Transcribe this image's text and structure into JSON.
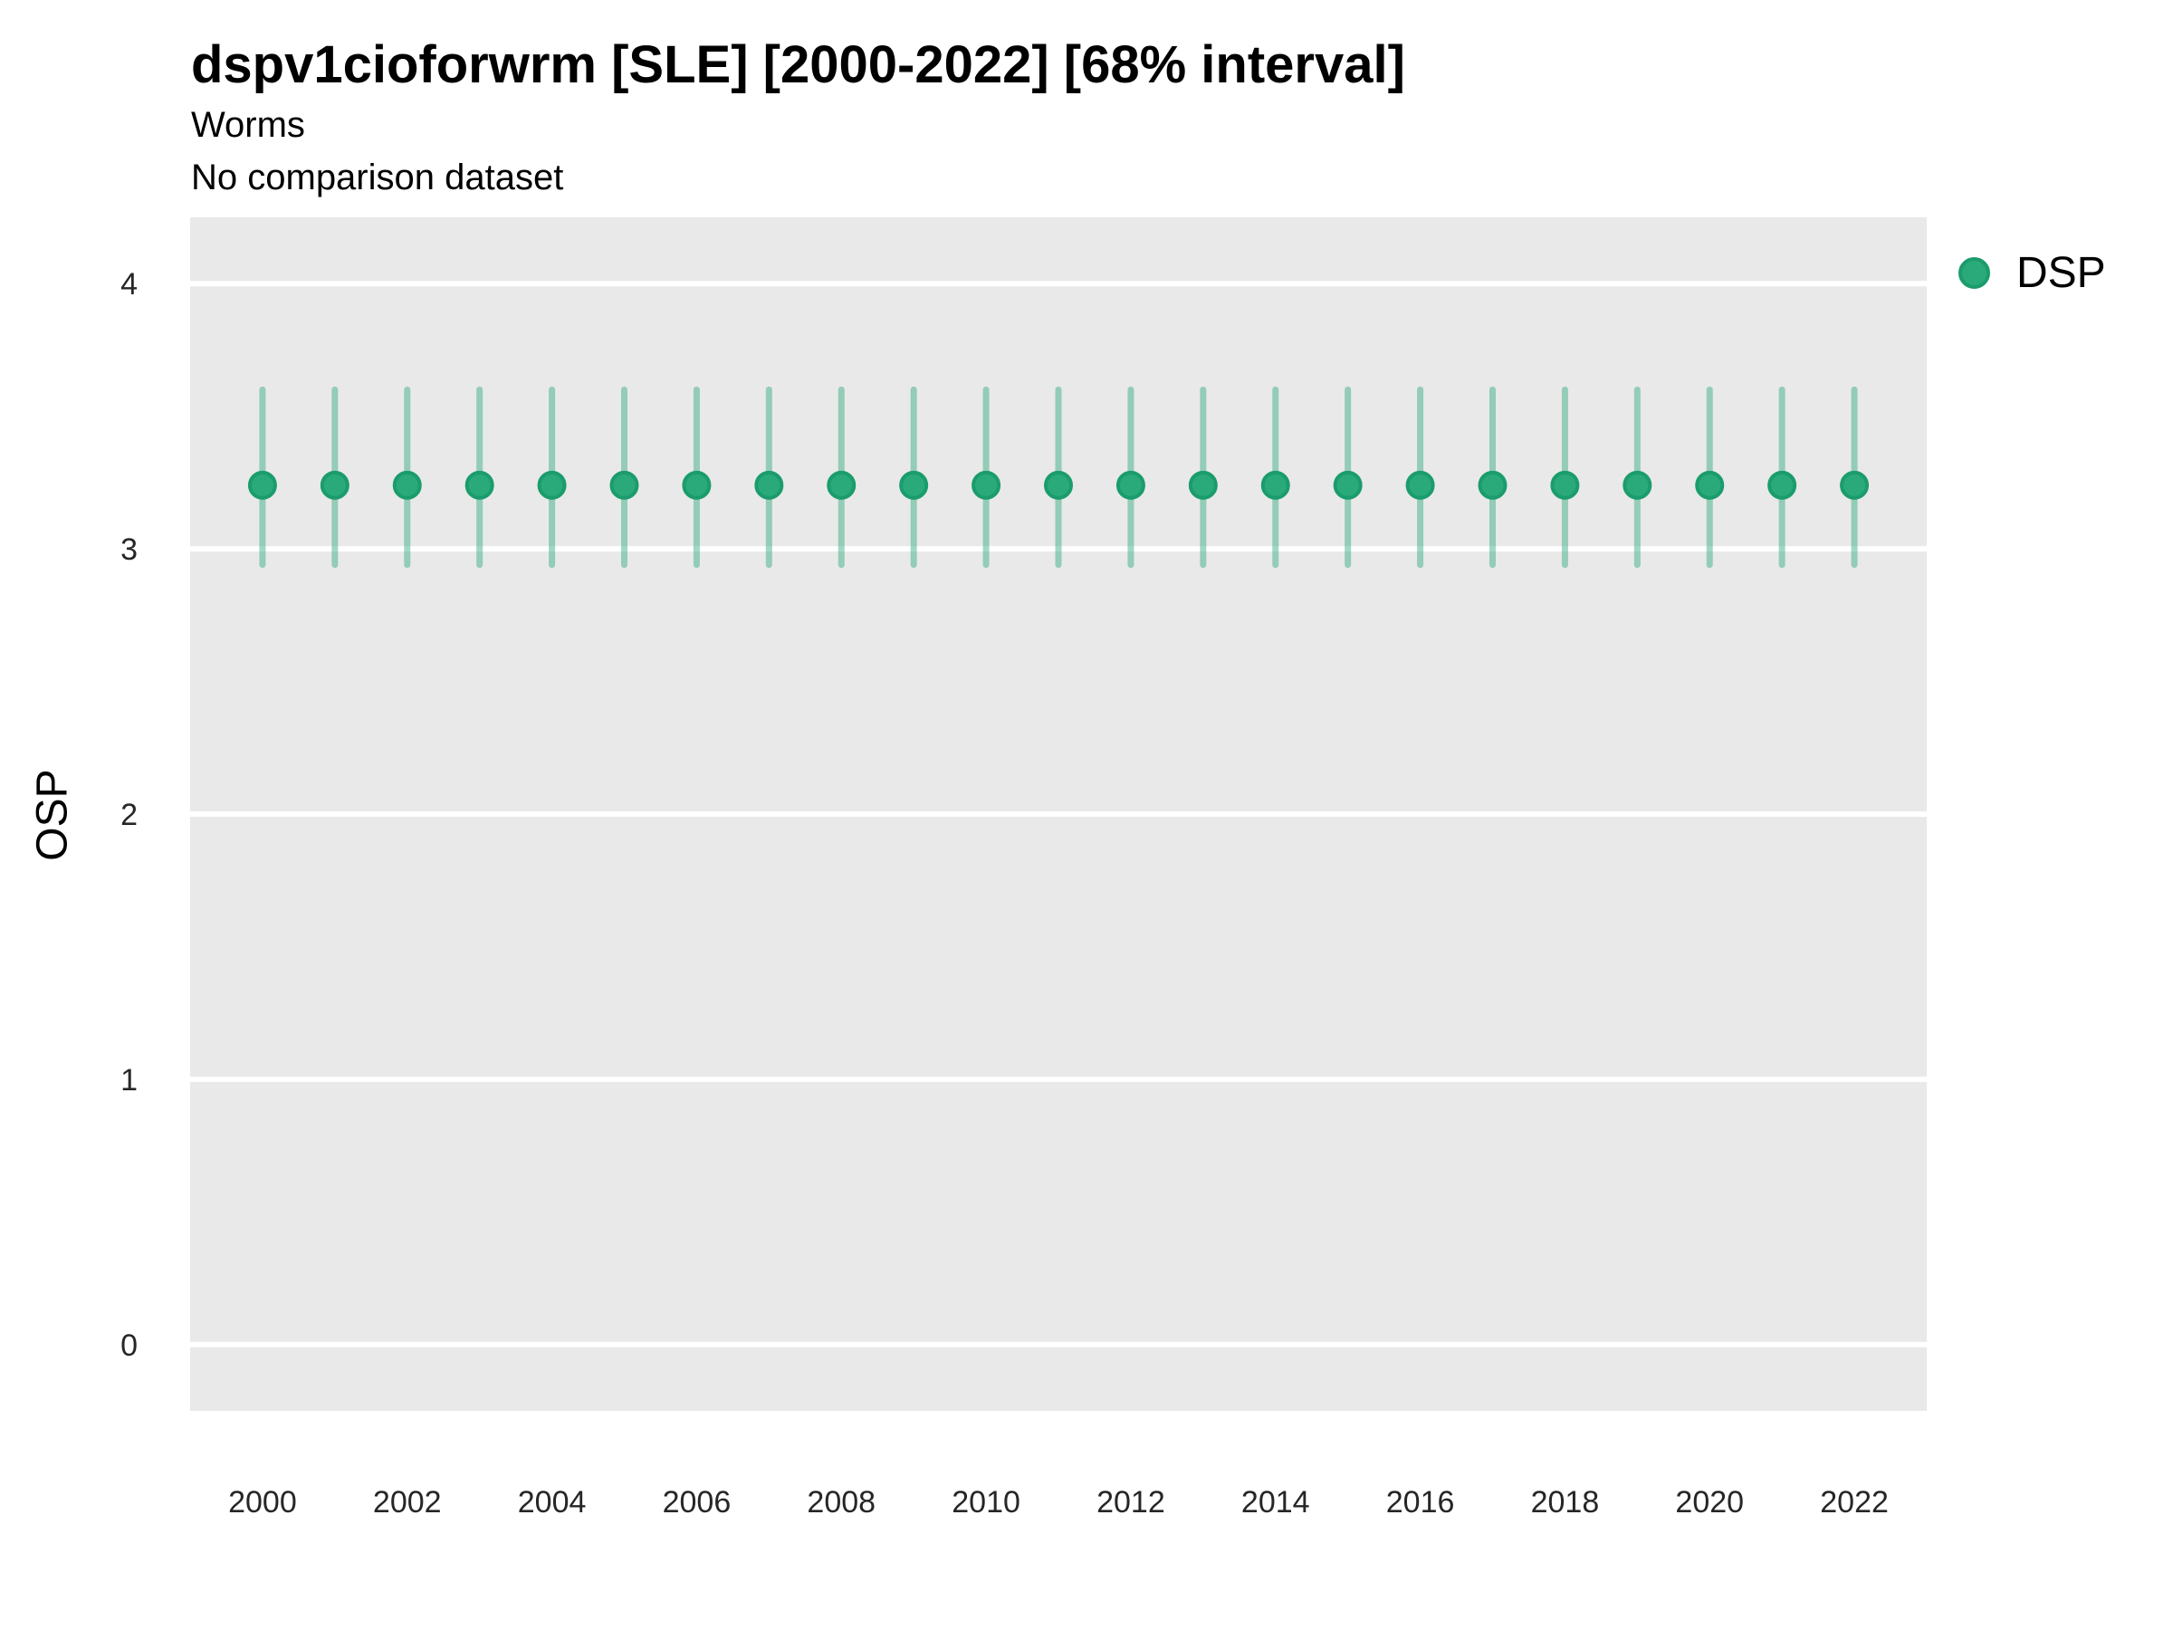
{
  "chart_data": {
    "type": "scatter",
    "title": "dspv1cioforwrm [SLE] [2000-2022] [68% interval]",
    "subtitle": "Worms",
    "note": "No comparison dataset",
    "xlabel": "",
    "ylabel": "OSP",
    "interval_label": "68% interval",
    "x": [
      2000,
      2001,
      2002,
      2003,
      2004,
      2005,
      2006,
      2007,
      2008,
      2009,
      2010,
      2011,
      2012,
      2013,
      2014,
      2015,
      2016,
      2017,
      2018,
      2019,
      2020,
      2021,
      2022
    ],
    "series": [
      {
        "name": "DSP",
        "y": [
          3.24,
          3.24,
          3.24,
          3.24,
          3.24,
          3.24,
          3.24,
          3.24,
          3.24,
          3.24,
          3.24,
          3.24,
          3.24,
          3.24,
          3.24,
          3.24,
          3.24,
          3.24,
          3.24,
          3.24,
          3.24,
          3.24,
          3.24
        ],
        "y_lo": [
          2.94,
          2.94,
          2.94,
          2.94,
          2.94,
          2.94,
          2.94,
          2.94,
          2.94,
          2.94,
          2.94,
          2.94,
          2.94,
          2.94,
          2.94,
          2.94,
          2.94,
          2.94,
          2.94,
          2.94,
          2.94,
          2.94,
          2.94
        ],
        "y_hi": [
          3.6,
          3.6,
          3.6,
          3.6,
          3.6,
          3.6,
          3.6,
          3.6,
          3.6,
          3.6,
          3.6,
          3.6,
          3.6,
          3.6,
          3.6,
          3.6,
          3.6,
          3.6,
          3.6,
          3.6,
          3.6,
          3.6,
          3.6
        ],
        "point_color": "#2aaa7b",
        "point_stroke": "#1b9c6c",
        "errorbar_color": "#2aa97a",
        "errorbar_opacity": 0.45
      }
    ],
    "xlim": [
      1999,
      2023
    ],
    "ylim": [
      -0.25,
      4.25
    ],
    "yticks": [
      0,
      1,
      2,
      3,
      4
    ],
    "xticks": [
      2000,
      2002,
      2004,
      2006,
      2008,
      2010,
      2012,
      2014,
      2016,
      2018,
      2020,
      2022
    ],
    "grid": {
      "horizontal_major": true,
      "vertical": false,
      "color": "#ffffff"
    },
    "panel_bg": "#e9e9e9",
    "legend_position": "right-top"
  }
}
